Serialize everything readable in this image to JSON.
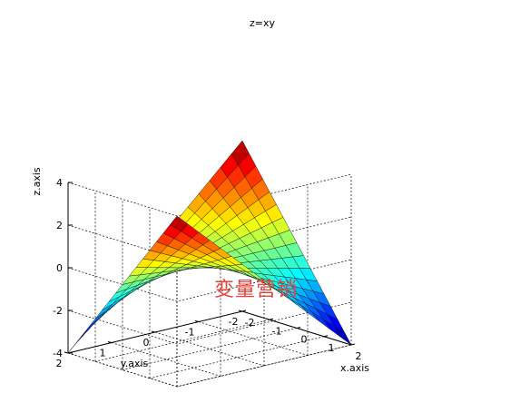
{
  "chart_data": {
    "type": "surface",
    "title": "z=xy",
    "xlabel": "x.axis",
    "ylabel": "y.axis",
    "zlabel": "z.axis",
    "function": "z = x*y",
    "xlim": [
      -2,
      2
    ],
    "ylim": [
      -2,
      2
    ],
    "zlim": [
      -4,
      4
    ],
    "x_ticks": [
      "-2",
      "-1",
      "0",
      "1",
      "2"
    ],
    "y_ticks": [
      "-2",
      "-1",
      "0",
      "1",
      "2"
    ],
    "z_ticks": [
      "-4",
      "-2",
      "0",
      "2",
      "4"
    ],
    "grid": true,
    "colormap": "jet",
    "x_values": [
      -2,
      -1.75,
      -1.5,
      -1.25,
      -1,
      -0.75,
      -0.5,
      -0.25,
      0,
      0.25,
      0.5,
      0.75,
      1,
      1.25,
      1.5,
      1.75,
      2
    ],
    "y_values": [
      -2,
      -1.75,
      -1.5,
      -1.25,
      -1,
      -0.75,
      -0.5,
      -0.25,
      0,
      0.25,
      0.5,
      0.75,
      1,
      1.25,
      1.5,
      1.75,
      2
    ]
  },
  "watermark": "变量营销"
}
